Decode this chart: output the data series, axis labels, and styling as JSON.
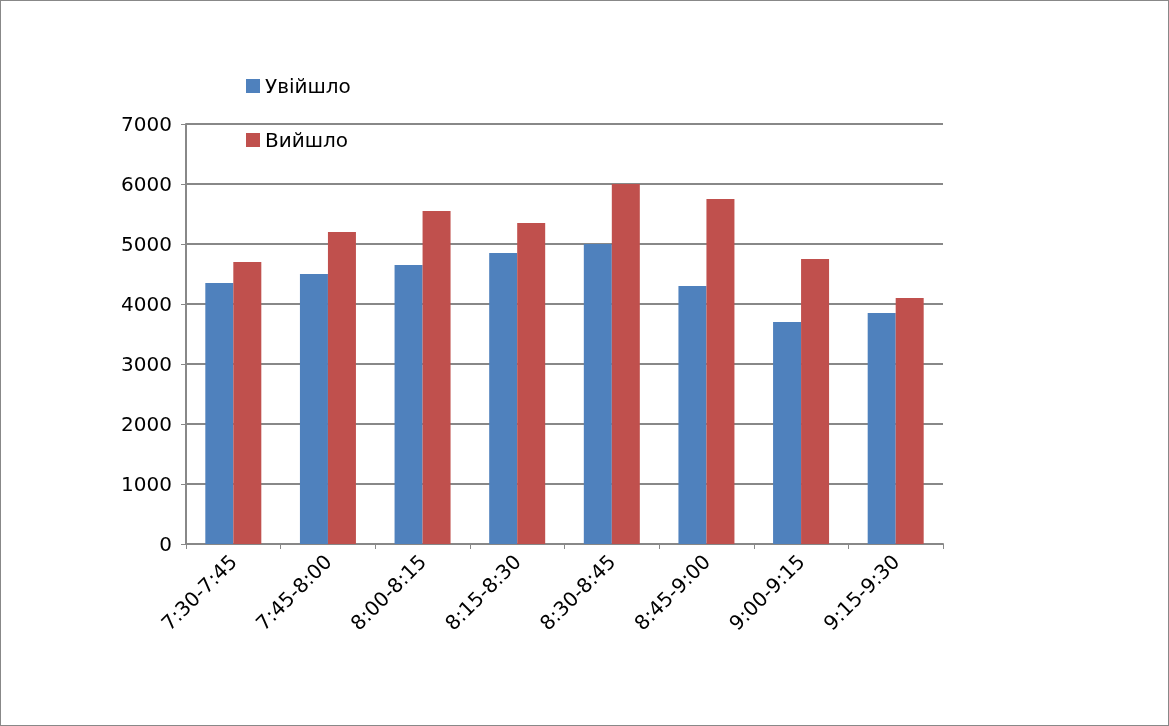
{
  "chart_data": {
    "type": "bar",
    "categories": [
      "7:30-7:45",
      "7:45-8:00",
      "8:00-8:15",
      "8:15-8:30",
      "8:30-8:45",
      "8:45-9:00",
      "9:00-9:15",
      "9:15-9:30"
    ],
    "series": [
      {
        "name": "Увійшло",
        "color": "#4f81bd",
        "values": [
          4350,
          4500,
          4650,
          4850,
          5000,
          4300,
          3700,
          3850
        ]
      },
      {
        "name": "Вийшло",
        "color": "#c0504d",
        "values": [
          4700,
          5200,
          5550,
          5350,
          6000,
          5750,
          4750,
          4100
        ]
      }
    ],
    "ylim": [
      0,
      7000
    ],
    "yticks": [
      0,
      1000,
      2000,
      3000,
      4000,
      5000,
      6000,
      7000
    ],
    "grid": "y",
    "legend": "top left"
  }
}
